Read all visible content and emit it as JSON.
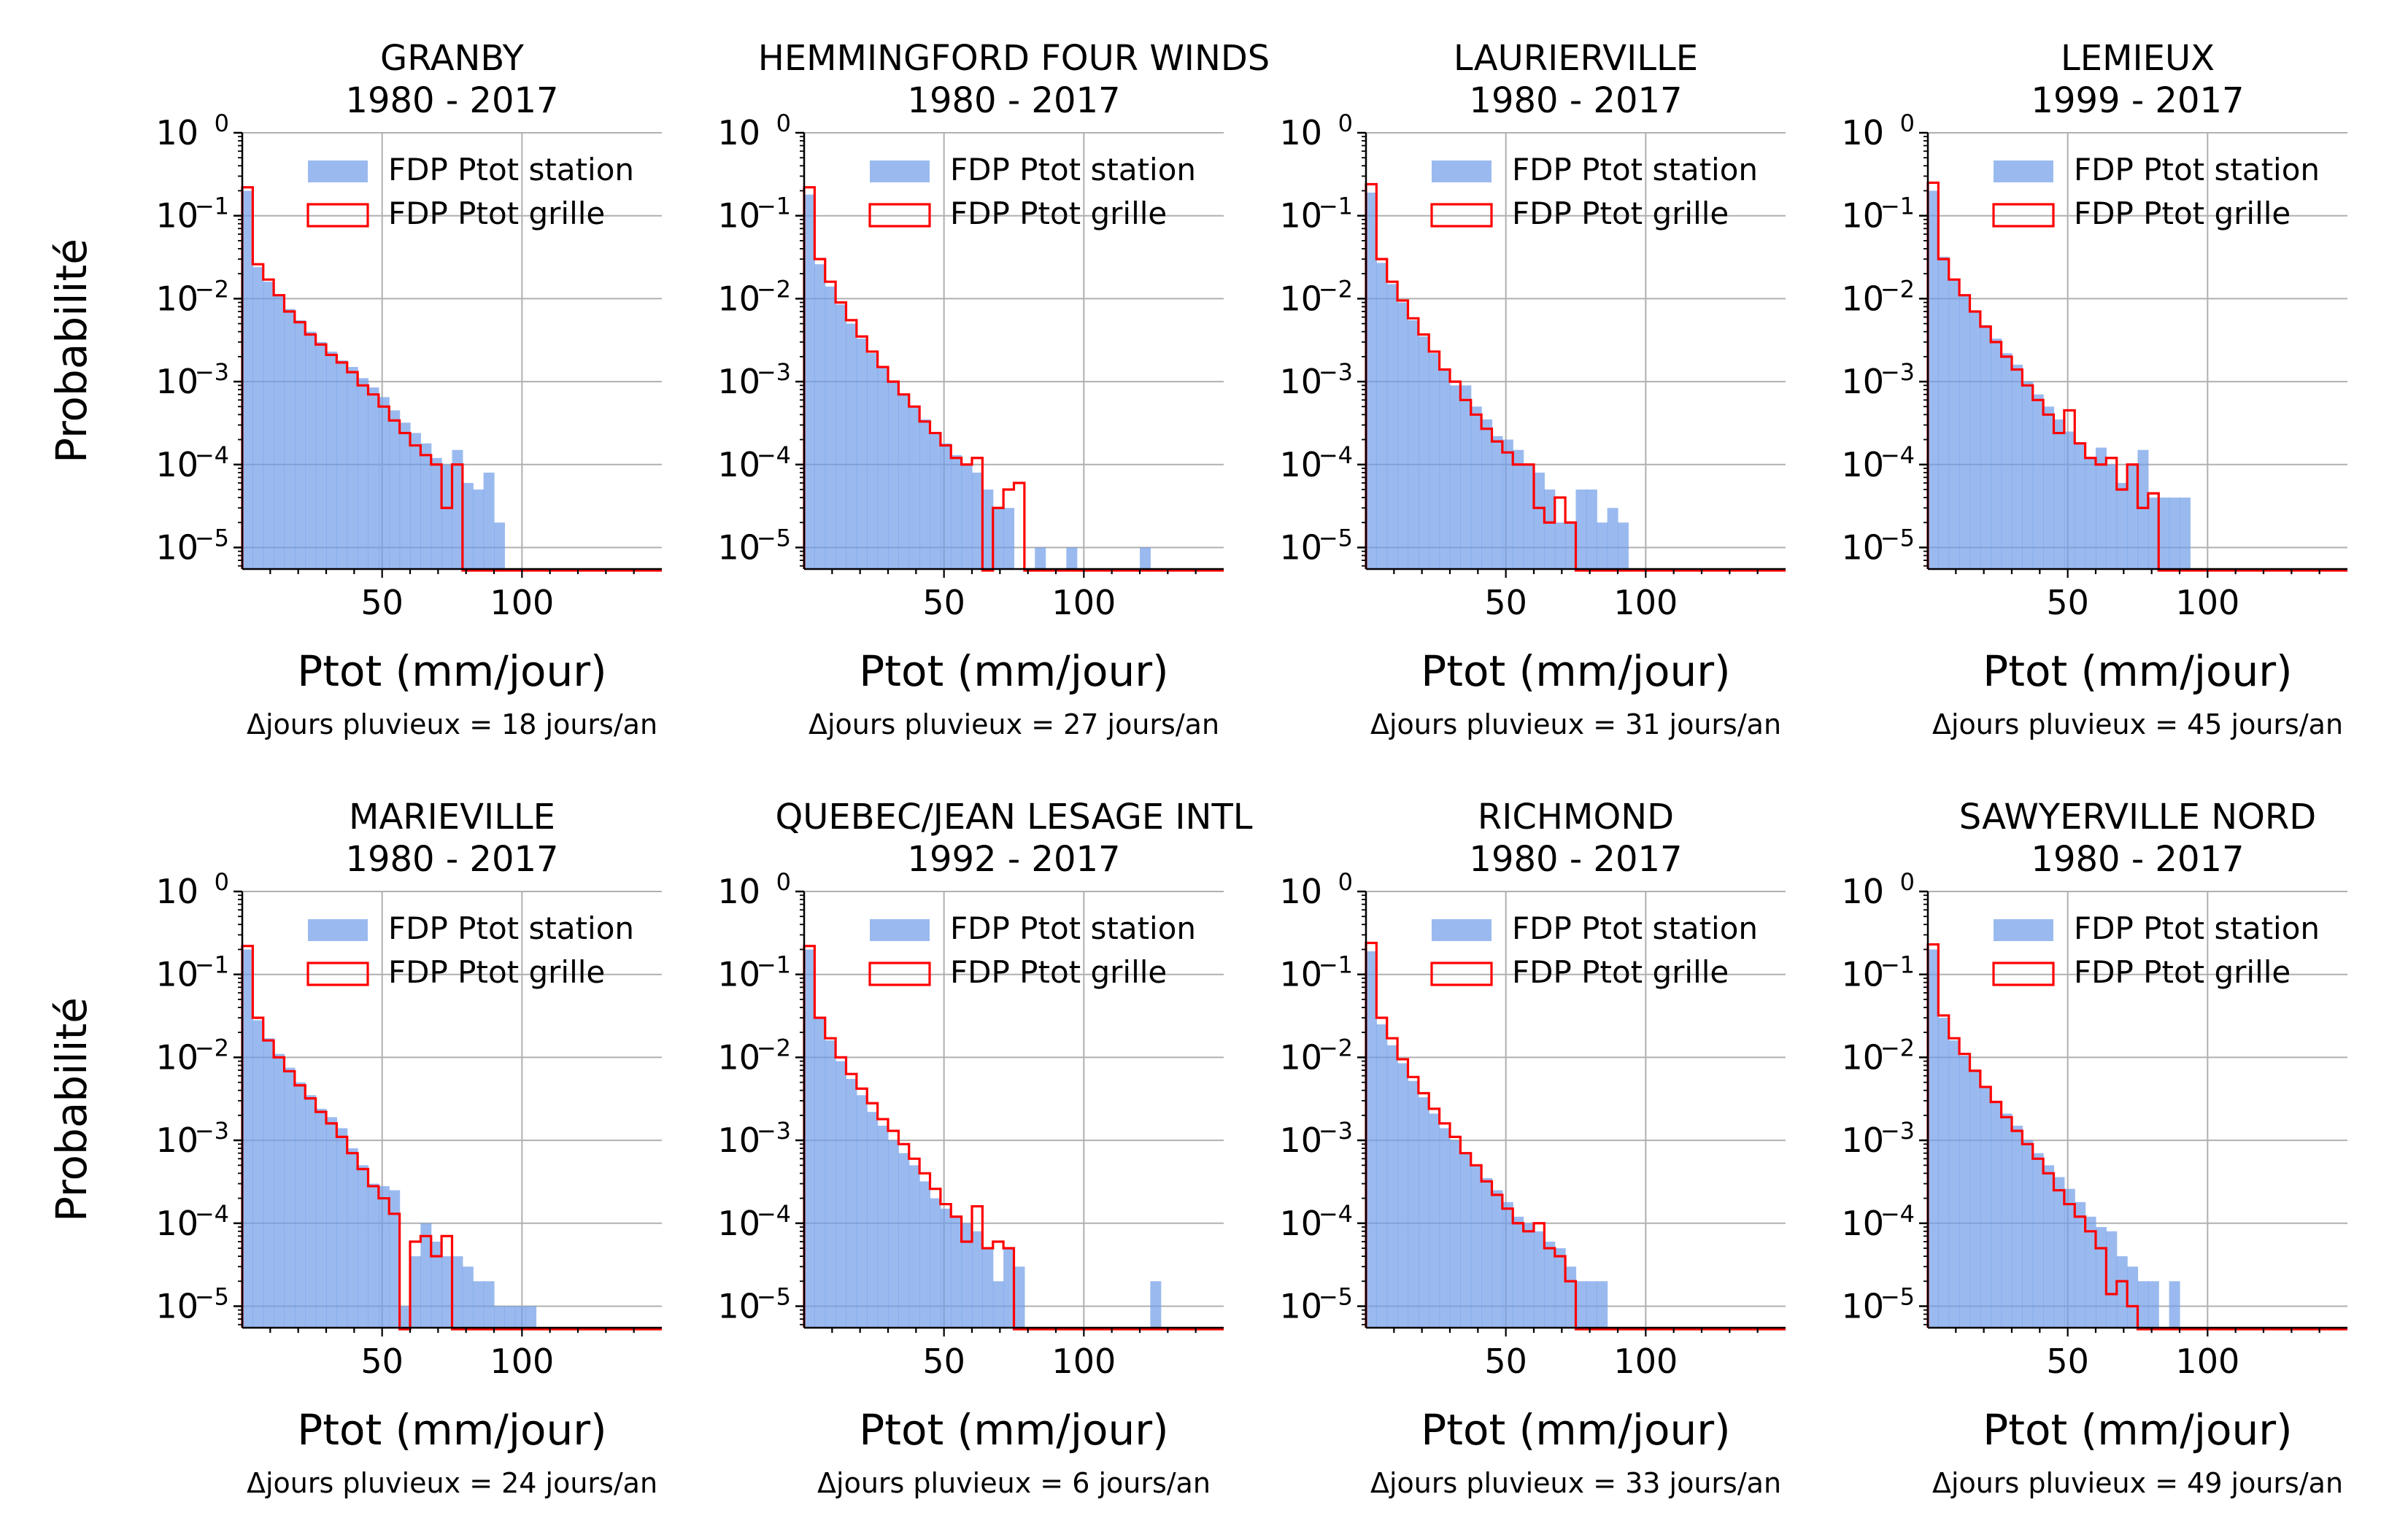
{
  "colors": {
    "station_fill": "#6f9ce8",
    "station_fill_opacity": 0.7,
    "grille_stroke": "#ff0000",
    "grid": "#b0b0b0",
    "axis": "#000000"
  },
  "shared": {
    "legend_station": "FDP Ptot station",
    "legend_grille": "FDP Ptot grille",
    "xlabel": "Ptot (mm/jour)",
    "ylabel": "Probabilité",
    "y_tick_base": "10",
    "y_tick_exponents": [
      "0",
      "−1",
      "−2",
      "−3",
      "−4",
      "−5"
    ],
    "x_ticks": [
      "50",
      "100"
    ]
  },
  "chart_data": [
    {
      "type": "bar",
      "title_station": "GRANBY",
      "title_period": "1980 - 2017",
      "note": "Δjours pluvieux = 18 jours/an",
      "xlabel": "Ptot (mm/jour)",
      "ylabel": "Probabilité",
      "xlim": [
        0,
        150
      ],
      "ylim": [
        5.5e-06,
        1
      ],
      "y_scale": "log",
      "grid": true,
      "legend_position": "top-right",
      "bin_width": 3.75,
      "series": [
        {
          "name": "FDP Ptot station",
          "values": [
            0.2,
            0.024,
            0.016,
            0.011,
            0.0075,
            0.0055,
            0.004,
            0.003,
            0.0023,
            0.0018,
            0.0015,
            0.0011,
            0.00085,
            0.00065,
            0.00045,
            0.00032,
            0.00024,
            0.00018,
            0.00012,
            0.0001,
            0.00015,
            6e-05,
            5e-05,
            8e-05,
            2e-05,
            0,
            0,
            0,
            0,
            0,
            0,
            0,
            0,
            0,
            0,
            0,
            0,
            0,
            0,
            0
          ]
        },
        {
          "name": "FDP Ptot grille",
          "values": [
            0.22,
            0.026,
            0.017,
            0.011,
            0.007,
            0.0052,
            0.0037,
            0.0028,
            0.0021,
            0.0017,
            0.0013,
            0.0009,
            0.0007,
            0.0005,
            0.00034,
            0.00024,
            0.00017,
            0.00013,
            0.0001,
            3e-05,
            0.0001,
            0,
            0,
            0,
            0,
            0,
            0,
            0,
            0,
            0,
            0,
            0,
            0,
            0,
            0,
            0,
            0,
            0,
            0,
            0
          ]
        }
      ]
    },
    {
      "type": "bar",
      "title_station": "HEMMINGFORD FOUR WINDS",
      "title_period": "1980 - 2017",
      "note": "Δjours pluvieux = 27 jours/an",
      "xlabel": "Ptot (mm/jour)",
      "ylabel": "Probabilité",
      "xlim": [
        0,
        150
      ],
      "ylim": [
        5.5e-06,
        1
      ],
      "y_scale": "log",
      "grid": true,
      "legend_position": "top-right",
      "bin_width": 3.75,
      "series": [
        {
          "name": "FDP Ptot station",
          "values": [
            0.18,
            0.026,
            0.014,
            0.0085,
            0.005,
            0.0033,
            0.0022,
            0.0015,
            0.001,
            0.0007,
            0.0005,
            0.00035,
            0.00024,
            0.00018,
            0.00013,
            0.0001,
            8e-05,
            5e-05,
            3e-05,
            3e-05,
            0,
            0,
            1e-05,
            0,
            0,
            1e-05,
            0,
            0,
            0,
            0,
            0,
            0,
            1e-05,
            0,
            0,
            0,
            0,
            0,
            0,
            0
          ]
        },
        {
          "name": "FDP Ptot grille",
          "values": [
            0.22,
            0.03,
            0.016,
            0.009,
            0.0055,
            0.0035,
            0.0023,
            0.0015,
            0.001,
            0.0007,
            0.0005,
            0.00033,
            0.00024,
            0.00017,
            0.00012,
            0.0001,
            0.00012,
            0,
            3e-05,
            5e-05,
            6e-05,
            0,
            0,
            0,
            0,
            0,
            0,
            0,
            0,
            0,
            0,
            0,
            0,
            0,
            0,
            0,
            0,
            0,
            0,
            0
          ]
        }
      ]
    },
    {
      "type": "bar",
      "title_station": "LAURIERVILLE",
      "title_period": "1980 - 2017",
      "note": "Δjours pluvieux = 31 jours/an",
      "xlabel": "Ptot (mm/jour)",
      "ylabel": "Probabilité",
      "xlim": [
        0,
        150
      ],
      "ylim": [
        5.5e-06,
        1
      ],
      "y_scale": "log",
      "grid": true,
      "legend_position": "top-right",
      "bin_width": 3.75,
      "series": [
        {
          "name": "FDP Ptot station",
          "values": [
            0.19,
            0.027,
            0.015,
            0.009,
            0.0055,
            0.0035,
            0.0022,
            0.0014,
            0.0009,
            0.0009,
            0.0005,
            0.00035,
            0.00022,
            0.0002,
            0.00015,
            0.0001,
            8e-05,
            5e-05,
            2e-05,
            2e-05,
            5e-05,
            5e-05,
            2e-05,
            3e-05,
            2e-05,
            0,
            0,
            0,
            0,
            0,
            0,
            0,
            0,
            0,
            0,
            0,
            0,
            0,
            0,
            0
          ]
        },
        {
          "name": "FDP Ptot grille",
          "values": [
            0.24,
            0.03,
            0.016,
            0.0095,
            0.0058,
            0.0037,
            0.0023,
            0.0014,
            0.001,
            0.0006,
            0.0004,
            0.00027,
            0.00019,
            0.00014,
            0.0001,
            0.0001,
            3e-05,
            2e-05,
            4e-05,
            2e-05,
            0,
            0,
            0,
            0,
            0,
            0,
            0,
            0,
            0,
            0,
            0,
            0,
            0,
            0,
            0,
            0,
            0,
            0,
            0,
            0
          ]
        }
      ]
    },
    {
      "type": "bar",
      "title_station": "LEMIEUX",
      "title_period": "1999 - 2017",
      "note": "Δjours pluvieux = 45 jours/an",
      "xlabel": "Ptot (mm/jour)",
      "ylabel": "Probabilité",
      "xlim": [
        0,
        150
      ],
      "ylim": [
        5.5e-06,
        1
      ],
      "y_scale": "log",
      "grid": true,
      "legend_position": "top-right",
      "bin_width": 3.75,
      "series": [
        {
          "name": "FDP Ptot station",
          "values": [
            0.2,
            0.032,
            0.017,
            0.011,
            0.007,
            0.0048,
            0.0033,
            0.0022,
            0.0016,
            0.001,
            0.0007,
            0.0005,
            0.00035,
            0.00025,
            0.00018,
            0.00012,
            0.00016,
            0.0001,
            6e-05,
            0.0001,
            0.00015,
            4e-05,
            4e-05,
            4e-05,
            4e-05,
            0,
            0,
            0,
            0,
            0,
            0,
            0,
            0,
            0,
            0,
            0,
            0,
            0,
            0,
            0
          ]
        },
        {
          "name": "FDP Ptot grille",
          "values": [
            0.25,
            0.03,
            0.017,
            0.011,
            0.007,
            0.0046,
            0.003,
            0.002,
            0.0014,
            0.0009,
            0.0006,
            0.0004,
            0.00024,
            0.00045,
            0.00018,
            0.00012,
            0.0001,
            0.00012,
            5e-05,
            0.0001,
            3e-05,
            4.5e-05,
            0,
            0,
            0,
            0,
            0,
            0,
            0,
            0,
            0,
            0,
            0,
            0,
            0,
            0,
            0,
            0,
            0,
            0
          ]
        }
      ]
    },
    {
      "type": "bar",
      "title_station": "MARIEVILLE",
      "title_period": "1980 - 2017",
      "note": "Δjours pluvieux = 24 jours/an",
      "xlabel": "Ptot (mm/jour)",
      "ylabel": "Probabilité",
      "xlim": [
        0,
        150
      ],
      "ylim": [
        5.5e-06,
        1
      ],
      "y_scale": "log",
      "grid": true,
      "legend_position": "top-right",
      "bin_width": 3.75,
      "series": [
        {
          "name": "FDP Ptot station",
          "values": [
            0.2,
            0.028,
            0.017,
            0.011,
            0.0075,
            0.005,
            0.0035,
            0.0024,
            0.0019,
            0.0014,
            0.0008,
            0.0005,
            0.0003,
            0.00028,
            0.00025,
            1e-05,
            4e-05,
            0.0001,
            6e-05,
            4e-05,
            4e-05,
            3e-05,
            2e-05,
            2e-05,
            1e-05,
            1e-05,
            1e-05,
            1e-05,
            0,
            0,
            0,
            0,
            0,
            0,
            0,
            0,
            0,
            0,
            0,
            0
          ]
        },
        {
          "name": "FDP Ptot grille",
          "values": [
            0.22,
            0.03,
            0.016,
            0.01,
            0.0068,
            0.0046,
            0.0032,
            0.0022,
            0.0016,
            0.0011,
            0.0007,
            0.00045,
            0.00028,
            0.0002,
            0.00013,
            0,
            6e-05,
            7e-05,
            4e-05,
            7e-05,
            0,
            0,
            0,
            0,
            0,
            0,
            0,
            0,
            0,
            0,
            0,
            0,
            0,
            0,
            0,
            0,
            0,
            0,
            0,
            0
          ]
        }
      ]
    },
    {
      "type": "bar",
      "title_station": "QUEBEC/JEAN LESAGE INTL",
      "title_period": "1992 - 2017",
      "note": "Δjours pluvieux = 6 jours/an",
      "xlabel": "Ptot (mm/jour)",
      "ylabel": "Probabilité",
      "xlim": [
        0,
        150
      ],
      "ylim": [
        5.5e-06,
        1
      ],
      "y_scale": "log",
      "grid": true,
      "legend_position": "top-right",
      "bin_width": 3.75,
      "series": [
        {
          "name": "FDP Ptot station",
          "values": [
            0.2,
            0.03,
            0.016,
            0.009,
            0.0055,
            0.0035,
            0.0022,
            0.0015,
            0.001,
            0.0007,
            0.0005,
            0.00032,
            0.0002,
            0.00015,
            0.00012,
            0.0001,
            8e-05,
            5e-05,
            2e-05,
            5e-05,
            3e-05,
            0,
            0,
            0,
            0,
            0,
            0,
            0,
            0,
            0,
            0,
            0,
            0,
            2e-05,
            0,
            0,
            0,
            0,
            0,
            0
          ]
        },
        {
          "name": "FDP Ptot grille",
          "values": [
            0.22,
            0.03,
            0.017,
            0.01,
            0.0063,
            0.0042,
            0.0028,
            0.0018,
            0.0013,
            0.0009,
            0.0006,
            0.0004,
            0.00026,
            0.00017,
            0.00012,
            6e-05,
            0.00016,
            5e-05,
            6e-05,
            5e-05,
            0,
            0,
            0,
            0,
            0,
            0,
            0,
            0,
            0,
            0,
            0,
            0,
            0,
            0,
            0,
            0,
            0,
            0,
            0,
            0
          ]
        }
      ]
    },
    {
      "type": "bar",
      "title_station": "RICHMOND",
      "title_period": "1980 - 2017",
      "note": "Δjours pluvieux = 33 jours/an",
      "xlabel": "Ptot (mm/jour)",
      "ylabel": "Probabilité",
      "xlim": [
        0,
        150
      ],
      "ylim": [
        5.5e-06,
        1
      ],
      "y_scale": "log",
      "grid": true,
      "legend_position": "top-right",
      "bin_width": 3.75,
      "series": [
        {
          "name": "FDP Ptot station",
          "values": [
            0.19,
            0.025,
            0.014,
            0.0085,
            0.0052,
            0.0033,
            0.0021,
            0.0014,
            0.001,
            0.0007,
            0.0005,
            0.00035,
            0.00025,
            0.00018,
            0.00012,
            0.0001,
            8e-05,
            6e-05,
            5e-05,
            3e-05,
            2e-05,
            2e-05,
            2e-05,
            0,
            0,
            0,
            0,
            0,
            0,
            0,
            0,
            0,
            0,
            0,
            0,
            0,
            0,
            0,
            0,
            0
          ]
        },
        {
          "name": "FDP Ptot grille",
          "values": [
            0.24,
            0.03,
            0.017,
            0.0095,
            0.0058,
            0.0037,
            0.0024,
            0.0016,
            0.0011,
            0.0007,
            0.0005,
            0.00032,
            0.00022,
            0.00015,
            0.0001,
            8e-05,
            0.0001,
            5e-05,
            4e-05,
            2e-05,
            0,
            0,
            0,
            0,
            0,
            0,
            0,
            0,
            0,
            0,
            0,
            0,
            0,
            0,
            0,
            0,
            0,
            0,
            0,
            0
          ]
        }
      ]
    },
    {
      "type": "bar",
      "title_station": "SAWYERVILLE NORD",
      "title_period": "1980 - 2017",
      "note": "Δjours pluvieux = 49 jours/an",
      "xlabel": "Ptot (mm/jour)",
      "ylabel": "Probabilité",
      "xlim": [
        0,
        150
      ],
      "ylim": [
        5.5e-06,
        1
      ],
      "y_scale": "log",
      "grid": true,
      "legend_position": "top-right",
      "bin_width": 3.75,
      "series": [
        {
          "name": "FDP Ptot station",
          "values": [
            0.2,
            0.03,
            0.016,
            0.0105,
            0.0068,
            0.0045,
            0.003,
            0.0021,
            0.0015,
            0.001,
            0.0007,
            0.0005,
            0.00036,
            0.00026,
            0.00018,
            0.00012,
            9e-05,
            8e-05,
            4e-05,
            3e-05,
            2e-05,
            2e-05,
            0,
            2e-05,
            0,
            0,
            0,
            0,
            0,
            0,
            0,
            0,
            0,
            0,
            0,
            0,
            0,
            0,
            0,
            0
          ]
        },
        {
          "name": "FDP Ptot grille",
          "values": [
            0.23,
            0.032,
            0.017,
            0.011,
            0.0069,
            0.0044,
            0.0029,
            0.0019,
            0.0013,
            0.0009,
            0.0006,
            0.0004,
            0.00025,
            0.00017,
            0.00012,
            8e-05,
            5e-05,
            1.4e-05,
            2e-05,
            1e-05,
            0,
            0,
            0,
            0,
            0,
            0,
            0,
            0,
            0,
            0,
            0,
            0,
            0,
            0,
            0,
            0,
            0,
            0,
            0,
            0
          ]
        }
      ]
    }
  ]
}
